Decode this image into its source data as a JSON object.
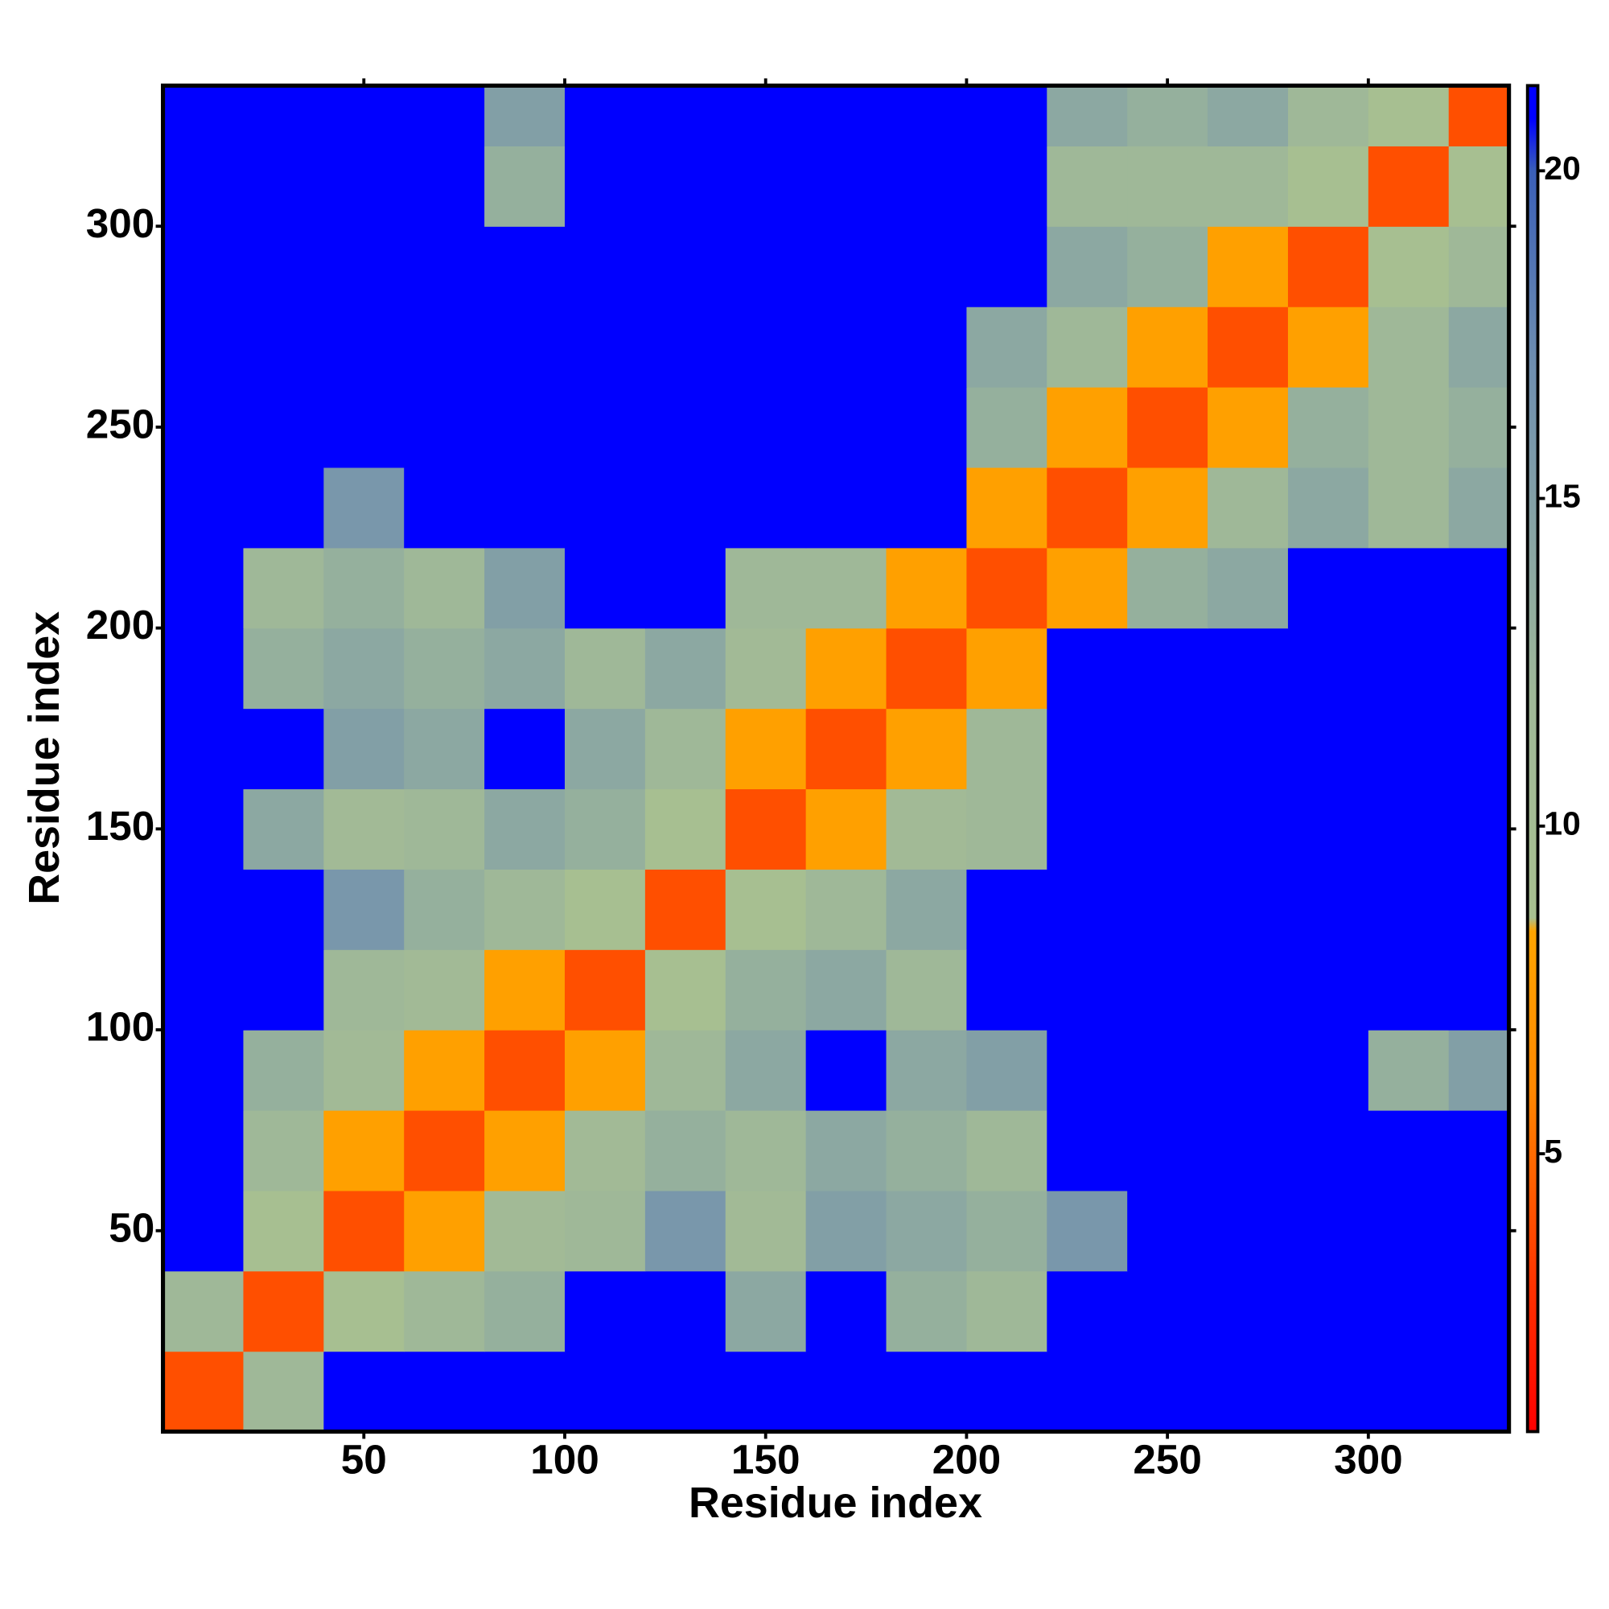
{
  "chart_data": {
    "type": "heatmap",
    "x_label": "Residue index",
    "y_label": "Residue index",
    "xbins": [
      0,
      20,
      40,
      60,
      80,
      100,
      120,
      140,
      160,
      180,
      200,
      220,
      240,
      260,
      280,
      300,
      320,
      335
    ],
    "ybins": [
      0,
      20,
      40,
      60,
      80,
      100,
      120,
      140,
      160,
      180,
      200,
      220,
      240,
      260,
      280,
      300,
      320,
      335
    ],
    "z": [
      [
        4,
        12,
        21,
        21,
        21,
        21,
        21,
        21,
        21,
        21,
        21,
        21,
        21,
        21,
        21,
        21,
        21
      ],
      [
        12,
        4,
        9,
        12,
        13,
        21,
        21,
        14,
        21,
        13,
        12,
        21,
        21,
        21,
        21,
        21,
        21
      ],
      [
        21,
        9,
        4,
        8,
        11,
        12,
        16,
        11,
        15,
        14,
        13,
        16,
        21,
        21,
        21,
        21,
        21
      ],
      [
        21,
        12,
        8,
        4,
        8,
        11,
        13,
        12,
        14,
        13,
        12,
        21,
        21,
        21,
        21,
        21,
        21
      ],
      [
        21,
        13,
        11,
        8,
        4,
        8,
        12,
        14,
        21,
        14,
        15,
        21,
        21,
        21,
        21,
        13,
        15
      ],
      [
        21,
        21,
        12,
        11,
        8,
        4,
        9,
        13,
        14,
        12,
        21,
        21,
        21,
        21,
        21,
        21,
        21
      ],
      [
        21,
        21,
        16,
        13,
        12,
        9,
        4,
        9,
        12,
        14,
        21,
        21,
        21,
        21,
        21,
        21,
        21
      ],
      [
        21,
        14,
        11,
        12,
        14,
        13,
        9,
        4,
        8,
        11,
        12,
        21,
        21,
        21,
        21,
        21,
        21
      ],
      [
        21,
        21,
        15,
        14,
        21,
        14,
        12,
        8,
        4,
        8,
        12,
        21,
        21,
        21,
        21,
        21,
        21
      ],
      [
        21,
        13,
        14,
        13,
        14,
        12,
        14,
        11,
        8,
        4,
        8,
        21,
        21,
        21,
        21,
        21,
        21
      ],
      [
        21,
        12,
        13,
        12,
        15,
        21,
        21,
        12,
        12,
        8,
        4,
        8,
        13,
        14,
        21,
        21,
        21
      ],
      [
        21,
        21,
        16,
        21,
        21,
        21,
        21,
        21,
        21,
        21,
        8,
        4,
        8,
        12,
        14,
        12,
        14
      ],
      [
        21,
        21,
        21,
        21,
        21,
        21,
        21,
        21,
        21,
        21,
        13,
        8,
        4,
        8,
        13,
        12,
        13
      ],
      [
        21,
        21,
        21,
        21,
        21,
        21,
        21,
        21,
        21,
        21,
        14,
        12,
        8,
        4,
        8,
        12,
        14
      ],
      [
        21,
        21,
        21,
        21,
        21,
        21,
        21,
        21,
        21,
        21,
        21,
        14,
        13,
        8,
        4,
        9,
        12
      ],
      [
        21,
        21,
        21,
        21,
        13,
        21,
        21,
        21,
        21,
        21,
        21,
        12,
        12,
        12,
        9,
        4,
        9
      ],
      [
        21,
        21,
        21,
        21,
        15,
        21,
        21,
        21,
        21,
        21,
        21,
        14,
        13,
        14,
        12,
        9,
        4
      ]
    ],
    "xlim": [
      0,
      335
    ],
    "ylim": [
      0,
      335
    ],
    "xticks": [
      50,
      100,
      150,
      200,
      250,
      300
    ],
    "yticks": [
      50,
      100,
      150,
      200,
      250,
      300
    ],
    "colorbar_lim": [
      0.76,
      21.3
    ],
    "colorbar_ticks": [
      5,
      10,
      15,
      20
    ],
    "colorscale": [
      [
        0.76,
        "#ff0000"
      ],
      [
        3,
        "#ff3300"
      ],
      [
        6,
        "#ff8800"
      ],
      [
        8.4,
        "#ffa500"
      ],
      [
        8.6,
        "#a8c090"
      ],
      [
        12,
        "#9fb898"
      ],
      [
        17,
        "#6f8fb0"
      ],
      [
        20,
        "#3a5fb8"
      ],
      [
        20.8,
        "#0000ff"
      ],
      [
        21.3,
        "#0000ff"
      ]
    ]
  }
}
